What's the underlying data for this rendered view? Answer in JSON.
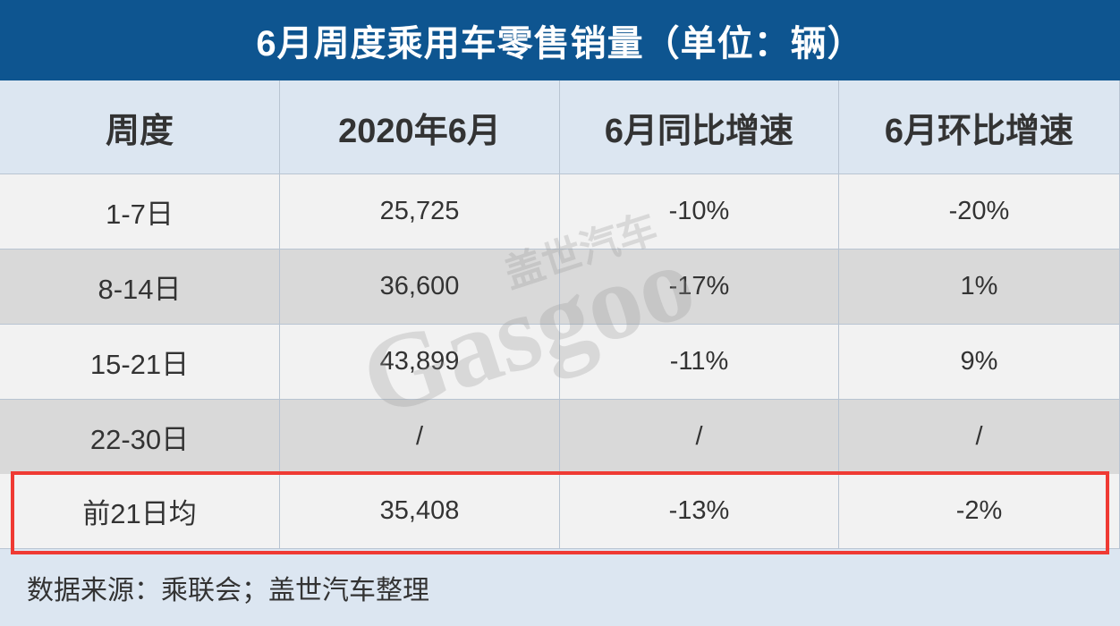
{
  "title": "6月周度乘用车零售销量（单位：辆）",
  "table": {
    "header": [
      "周度",
      "2020年6月",
      "6月同比增速",
      "6月环比增速"
    ],
    "rows": [
      [
        "1-7日",
        "25,725",
        "-10%",
        "-20%"
      ],
      [
        "8-14日",
        "36,600",
        "-17%",
        "1%"
      ],
      [
        "15-21日",
        "43,899",
        "-11%",
        "9%"
      ],
      [
        "22-30日",
        "/",
        "/",
        "/"
      ],
      [
        "前21日均",
        "35,408",
        "-13%",
        "-2%"
      ]
    ]
  },
  "footer": {
    "source": "数据来源：乘联会；盖世汽车整理"
  },
  "watermark": {
    "cn": "盖世汽车",
    "en": "Gasgoo"
  }
}
